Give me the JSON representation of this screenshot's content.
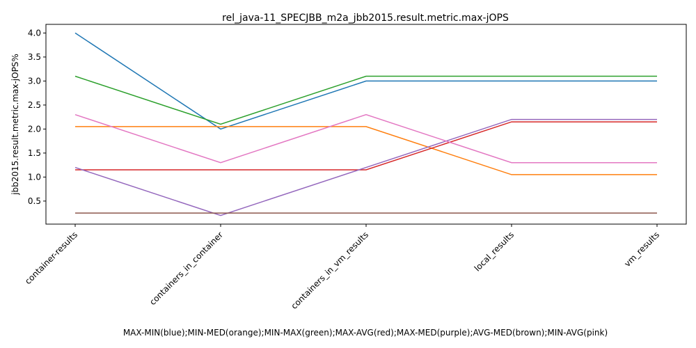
{
  "chart_data": {
    "type": "line",
    "title": "rel_java-11_SPECJBB_m2a_jbb2015.result.metric.max-jOPS",
    "xlabel": "MAX-MIN(blue);MIN-MED(orange);MIN-MAX(green);MAX-AVG(red);MAX-MED(purple);AVG-MED(brown);MIN-AVG(pink)",
    "ylabel": "jbb2015.result.metric.max-jOPS%",
    "categories": [
      "container-results",
      "containers_in_container",
      "containers_in_vm_results",
      "local_results",
      "vm_results"
    ],
    "ylim": [
      0.02,
      4.18
    ],
    "yticks": [
      "0.5",
      "1.0",
      "1.5",
      "2.0",
      "2.5",
      "3.0",
      "3.5",
      "4.0"
    ],
    "grid": false,
    "series": [
      {
        "color": "#1f77b4",
        "values": [
          4.0,
          2.0,
          3.0,
          3.0,
          3.0
        ]
      },
      {
        "color": "#ff7f0e",
        "values": [
          2.05,
          2.05,
          2.05,
          1.05,
          1.05
        ]
      },
      {
        "color": "#2ca02c",
        "values": [
          3.1,
          2.1,
          3.1,
          3.1,
          3.1
        ]
      },
      {
        "color": "#d62728",
        "values": [
          1.15,
          1.15,
          1.15,
          2.15,
          2.15
        ]
      },
      {
        "color": "#9467bd",
        "values": [
          1.2,
          0.2,
          1.2,
          2.2,
          2.2
        ]
      },
      {
        "color": "#8c564b",
        "values": [
          0.25,
          0.25,
          0.25,
          0.25,
          0.25
        ]
      },
      {
        "color": "#e377c2",
        "values": [
          2.3,
          1.3,
          2.3,
          1.3,
          1.3
        ]
      }
    ]
  }
}
